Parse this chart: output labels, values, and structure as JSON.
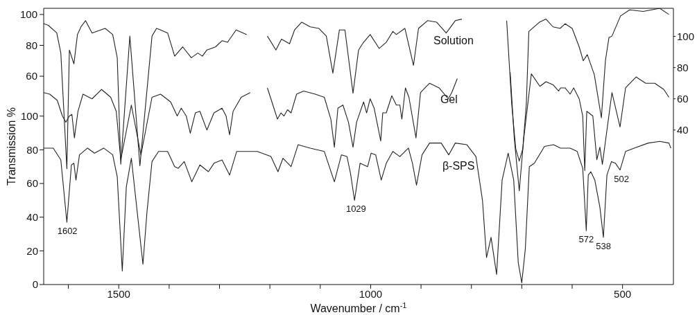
{
  "chart_data": {
    "type": "line",
    "xlabel": "Wavenumber / cm$^{-1}$",
    "ylabel": "Transmission %",
    "xlim": [
      1649,
      399
    ],
    "xticks": [
      {
        "value": 1600,
        "label": null
      },
      1500,
      {
        "value": 1400,
        "label": null
      },
      {
        "value": 1300,
        "label": null
      },
      {
        "value": 1200,
        "label": null
      },
      {
        "value": 1100,
        "label": null
      },
      1000,
      {
        "value": 900,
        "label": null
      },
      {
        "value": 800,
        "label": null
      },
      {
        "value": 700,
        "label": null
      },
      {
        "value": 600,
        "label": null
      },
      500
    ],
    "ylim": [
      0,
      164
    ],
    "yticks": [
      0,
      20,
      40,
      60,
      80,
      100
    ],
    "y2lim": [
      -59,
      118
    ],
    "y2ticks": [
      40,
      60,
      80,
      100
    ],
    "y3lim": [
      -75,
      104
    ],
    "y3ticks": [
      60,
      80,
      100
    ],
    "marker": "none",
    "line_style": "solid",
    "series": [
      {
        "name": "Solution",
        "color": "#222222",
        "axis": "y3",
        "x": [
          1649,
          1640,
          1623,
          1615,
          1603,
          1598,
          1589,
          1582,
          1575,
          1566,
          1553,
          1527,
          1512,
          1503,
          1496,
          1478,
          1458,
          1434,
          1425,
          1417,
          1403,
          1389,
          1373,
          1356,
          1343,
          1334,
          1325,
          1308,
          1295,
          1284,
          1267,
          1246,
          1225,
          1205,
          1188,
          1177,
          1161,
          1151,
          1137,
          1120,
          1103,
          1088,
          1075,
          1062,
          1051,
          1035,
          1024,
          1014,
          1001,
          983,
          969,
          956,
          949,
          932,
          915,
          905,
          887,
          869,
          850,
          832,
          819,
          775,
          730,
          720,
          712,
          705,
          698,
          691,
          686,
          665,
          652,
          638,
          624,
          614,
          600,
          586,
          578,
          570,
          556,
          542,
          534,
          527,
          521,
          504,
          486,
          459,
          426,
          408
        ],
        "values": [
          94,
          93,
          88,
          75,
          0,
          77,
          68,
          87,
          92,
          96,
          88,
          91,
          87,
          72,
          3,
          86,
          2,
          86,
          91,
          90,
          88,
          73,
          79,
          72,
          75,
          73,
          77,
          79,
          83,
          82,
          90,
          87,
          null,
          86,
          77,
          84,
          81,
          90,
          95,
          92,
          91,
          86,
          62,
          90,
          90,
          49,
          77,
          82,
          87,
          78,
          82,
          89,
          87,
          91,
          67,
          91,
          96,
          95,
          88,
          96,
          97,
          null,
          96,
          42,
          13,
          5,
          13,
          42,
          89,
          95,
          97,
          92,
          91,
          94,
          91,
          79,
          70,
          74,
          61,
          33,
          70,
          85,
          86,
          99,
          103,
          102,
          104,
          100
        ]
      },
      {
        "name": "Gel",
        "color": "#222222",
        "axis": "y2",
        "x": [
          1649,
          1637,
          1622,
          1612,
          1605,
          1598,
          1593,
          1588,
          1581,
          1571,
          1553,
          1534,
          1516,
          1505,
          1496,
          1475,
          1456,
          1434,
          1417,
          1397,
          1384,
          1376,
          1366,
          1358,
          1348,
          1339,
          1325,
          1311,
          1295,
          1287,
          1280,
          1273,
          1257,
          1239,
          1222,
          1205,
          1192,
          1185,
          1178,
          1172,
          1165,
          1158,
          1147,
          1133,
          1110,
          1092,
          1079,
          1072,
          1065,
          1055,
          1044,
          1035,
          1028,
          1014,
          1008,
          1001,
          993,
          980,
          976,
          969,
          958,
          949,
          942,
          938,
          931,
          924,
          910,
          901,
          883,
          864,
          846,
          839,
          828,
          775,
          723,
          715,
          705,
          696,
          681,
          664,
          652,
          638,
          627,
          623,
          614,
          604,
          597,
          586,
          579,
          575,
          571,
          559,
          551,
          545,
          540,
          521,
          505,
          494,
          473,
          454,
          436,
          418,
          408
        ],
        "values": [
          64,
          63,
          59,
          49,
          45,
          49,
          50,
          35,
          52,
          63,
          60,
          66,
          61,
          52,
          21,
          56,
          24,
          61,
          63,
          58,
          49,
          54,
          49,
          38,
          51,
          52,
          40,
          51,
          54,
          49,
          37,
          52,
          61,
          64,
          null,
          67,
          54,
          47,
          51,
          49,
          53,
          51,
          63,
          65,
          63,
          61,
          47,
          29,
          54,
          56,
          45,
          29,
          45,
          58,
          51,
          60,
          54,
          33,
          51,
          51,
          62,
          56,
          56,
          47,
          67,
          61,
          35,
          64,
          70,
          67,
          60,
          64,
          73,
          null,
          77,
          35,
          1,
          35,
          76,
          68,
          71,
          69,
          65,
          67,
          67,
          63,
          67,
          60,
          49,
          14,
          52,
          49,
          21,
          29,
          18,
          64,
          42,
          67,
          74,
          70,
          70,
          66,
          61
        ]
      },
      {
        "name": "β-SPS",
        "color": "#222222",
        "x": [
          1649,
          1630,
          1615,
          1603,
          1594,
          1589,
          1585,
          1578,
          1562,
          1548,
          1530,
          1512,
          1503,
          1493,
          1485,
          1475,
          1452,
          1444,
          1434,
          1421,
          1403,
          1389,
          1382,
          1370,
          1355,
          1339,
          1322,
          1311,
          1295,
          1280,
          1266,
          1243,
          1225,
          1198,
          1184,
          1174,
          1158,
          1144,
          1120,
          1092,
          1072,
          1058,
          1047,
          1040,
          1032,
          1021,
          1006,
          999,
          990,
          979,
          969,
          956,
          942,
          925,
          917,
          909,
          898,
          883,
          860,
          845,
          832,
          809,
          791,
          778,
          770,
          761,
          750,
          739,
          727,
          716,
          707,
          700,
          693,
          685,
          675,
          655,
          637,
          623,
          604,
          590,
          579,
          572,
          568,
          563,
          555,
          545,
          538,
          531,
          522,
          514,
          505,
          494,
          477,
          449,
          426,
          408,
          404
        ],
        "values": [
          81,
          81,
          74,
          37,
          71,
          72,
          62,
          77,
          81,
          78,
          81,
          77,
          64,
          8,
          58,
          75,
          12,
          43,
          73,
          79,
          79,
          70,
          69,
          73,
          61,
          71,
          67,
          72,
          74,
          65,
          79,
          79,
          79,
          76,
          67,
          75,
          70,
          83,
          81,
          79,
          61,
          77,
          76,
          66,
          50,
          72,
          70,
          78,
          77,
          62,
          72,
          79,
          76,
          81,
          72,
          59,
          77,
          84,
          84,
          77,
          84,
          83,
          76,
          50,
          16,
          28,
          6,
          62,
          78,
          62,
          13,
          1,
          21,
          70,
          72,
          82,
          83,
          81,
          81,
          79,
          69,
          32,
          65,
          67,
          62,
          46,
          28,
          65,
          73,
          72,
          68,
          79,
          81,
          84,
          85,
          84,
          81
        ]
      }
    ],
    "annotations": [
      {
        "text": "1602",
        "x": 1602,
        "y": 37
      },
      {
        "text": "1029",
        "x": 1029,
        "y": 50
      },
      {
        "text": "572",
        "x": 572,
        "y": 32
      },
      {
        "text": "538",
        "x": 538,
        "y": 28
      },
      {
        "text": "502",
        "x": 502,
        "y": 68
      }
    ]
  }
}
